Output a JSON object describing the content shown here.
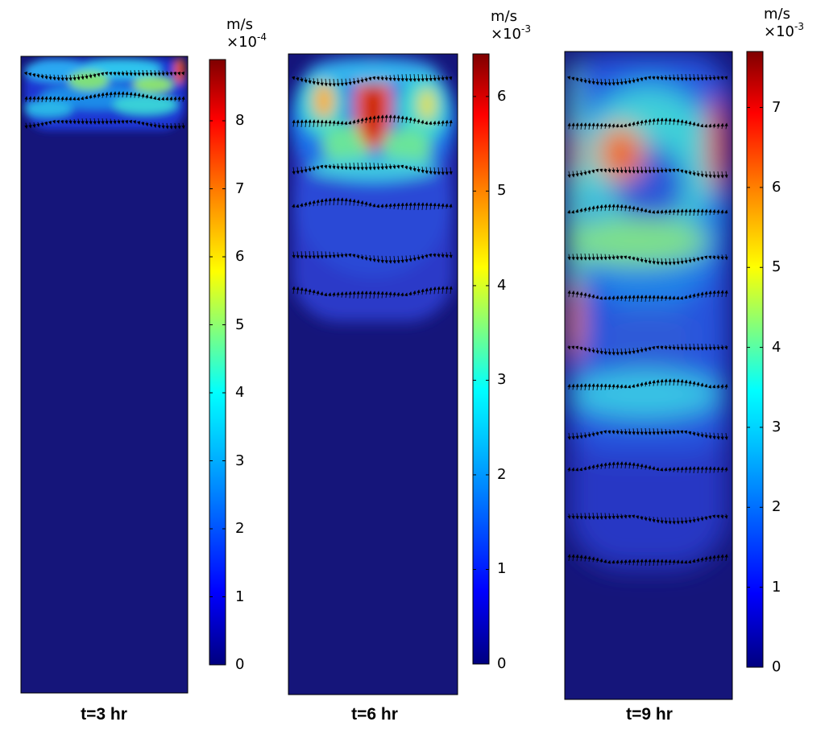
{
  "figure": {
    "panels": [
      {
        "caption": "t=3 hr",
        "unit": "m/s",
        "scale_base": "×10",
        "scale_exp": "-4",
        "ticks": [
          0,
          1,
          2,
          3,
          4,
          5,
          6,
          7,
          8
        ],
        "range_max": 8.9
      },
      {
        "caption": "t=6 hr",
        "unit": "m/s",
        "scale_base": "×10",
        "scale_exp": "-3",
        "ticks": [
          0,
          1,
          2,
          3,
          4,
          5,
          6
        ],
        "range_max": 6.45
      },
      {
        "caption": "t=9 hr",
        "unit": "m/s",
        "scale_base": "×10",
        "scale_exp": "-3",
        "ticks": [
          0,
          1,
          2,
          3,
          4,
          5,
          6,
          7
        ],
        "range_max": 7.7
      }
    ],
    "colors": {
      "background_low": "#1a1a7a",
      "jet": [
        "#00007f",
        "#0000ff",
        "#00bfff",
        "#00ffff",
        "#7fff7f",
        "#ffff00",
        "#ff7f00",
        "#ff0000",
        "#7f0000"
      ],
      "arrow": "#000000"
    }
  }
}
